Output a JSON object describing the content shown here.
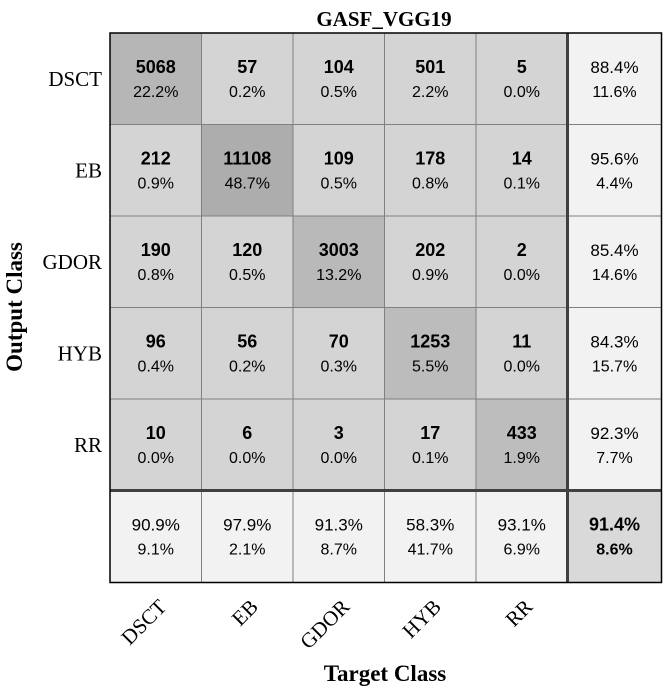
{
  "chart_data": {
    "type": "heatmap",
    "title": "GASF_VGG19",
    "xlabel": "Target Class",
    "ylabel": "Output Class",
    "classes": [
      "DSCT",
      "EB",
      "GDOR",
      "HYB",
      "RR"
    ],
    "counts": [
      [
        5068,
        57,
        104,
        501,
        5
      ],
      [
        212,
        11108,
        109,
        178,
        14
      ],
      [
        190,
        120,
        3003,
        202,
        2
      ],
      [
        96,
        56,
        70,
        1253,
        11
      ],
      [
        10,
        6,
        3,
        17,
        433
      ]
    ],
    "percents": [
      [
        "22.2%",
        "0.2%",
        "0.5%",
        "2.2%",
        "0.0%"
      ],
      [
        "0.9%",
        "48.7%",
        "0.5%",
        "0.8%",
        "0.1%"
      ],
      [
        "0.8%",
        "0.5%",
        "13.2%",
        "0.9%",
        "0.0%"
      ],
      [
        "0.4%",
        "0.2%",
        "0.3%",
        "5.5%",
        "0.0%"
      ],
      [
        "0.0%",
        "0.0%",
        "0.0%",
        "0.1%",
        "1.9%"
      ]
    ],
    "row_summary": [
      [
        "88.4%",
        "11.6%"
      ],
      [
        "95.6%",
        "4.4%"
      ],
      [
        "85.4%",
        "14.6%"
      ],
      [
        "84.3%",
        "15.7%"
      ],
      [
        "92.3%",
        "7.7%"
      ]
    ],
    "col_summary": [
      [
        "90.9%",
        "9.1%"
      ],
      [
        "97.9%",
        "2.1%"
      ],
      [
        "91.3%",
        "8.7%"
      ],
      [
        "58.3%",
        "41.7%"
      ],
      [
        "93.1%",
        "6.9%"
      ]
    ],
    "overall": [
      "91.4%",
      "8.6%"
    ],
    "colors": {
      "diag_max": "#adadad",
      "diag_min": "#bdbdbd",
      "offdiag": "#d4d4d4",
      "summary": "#f2f2f2",
      "overall": "#d9d9d9",
      "grid": "#808080",
      "border": "#000000"
    }
  }
}
